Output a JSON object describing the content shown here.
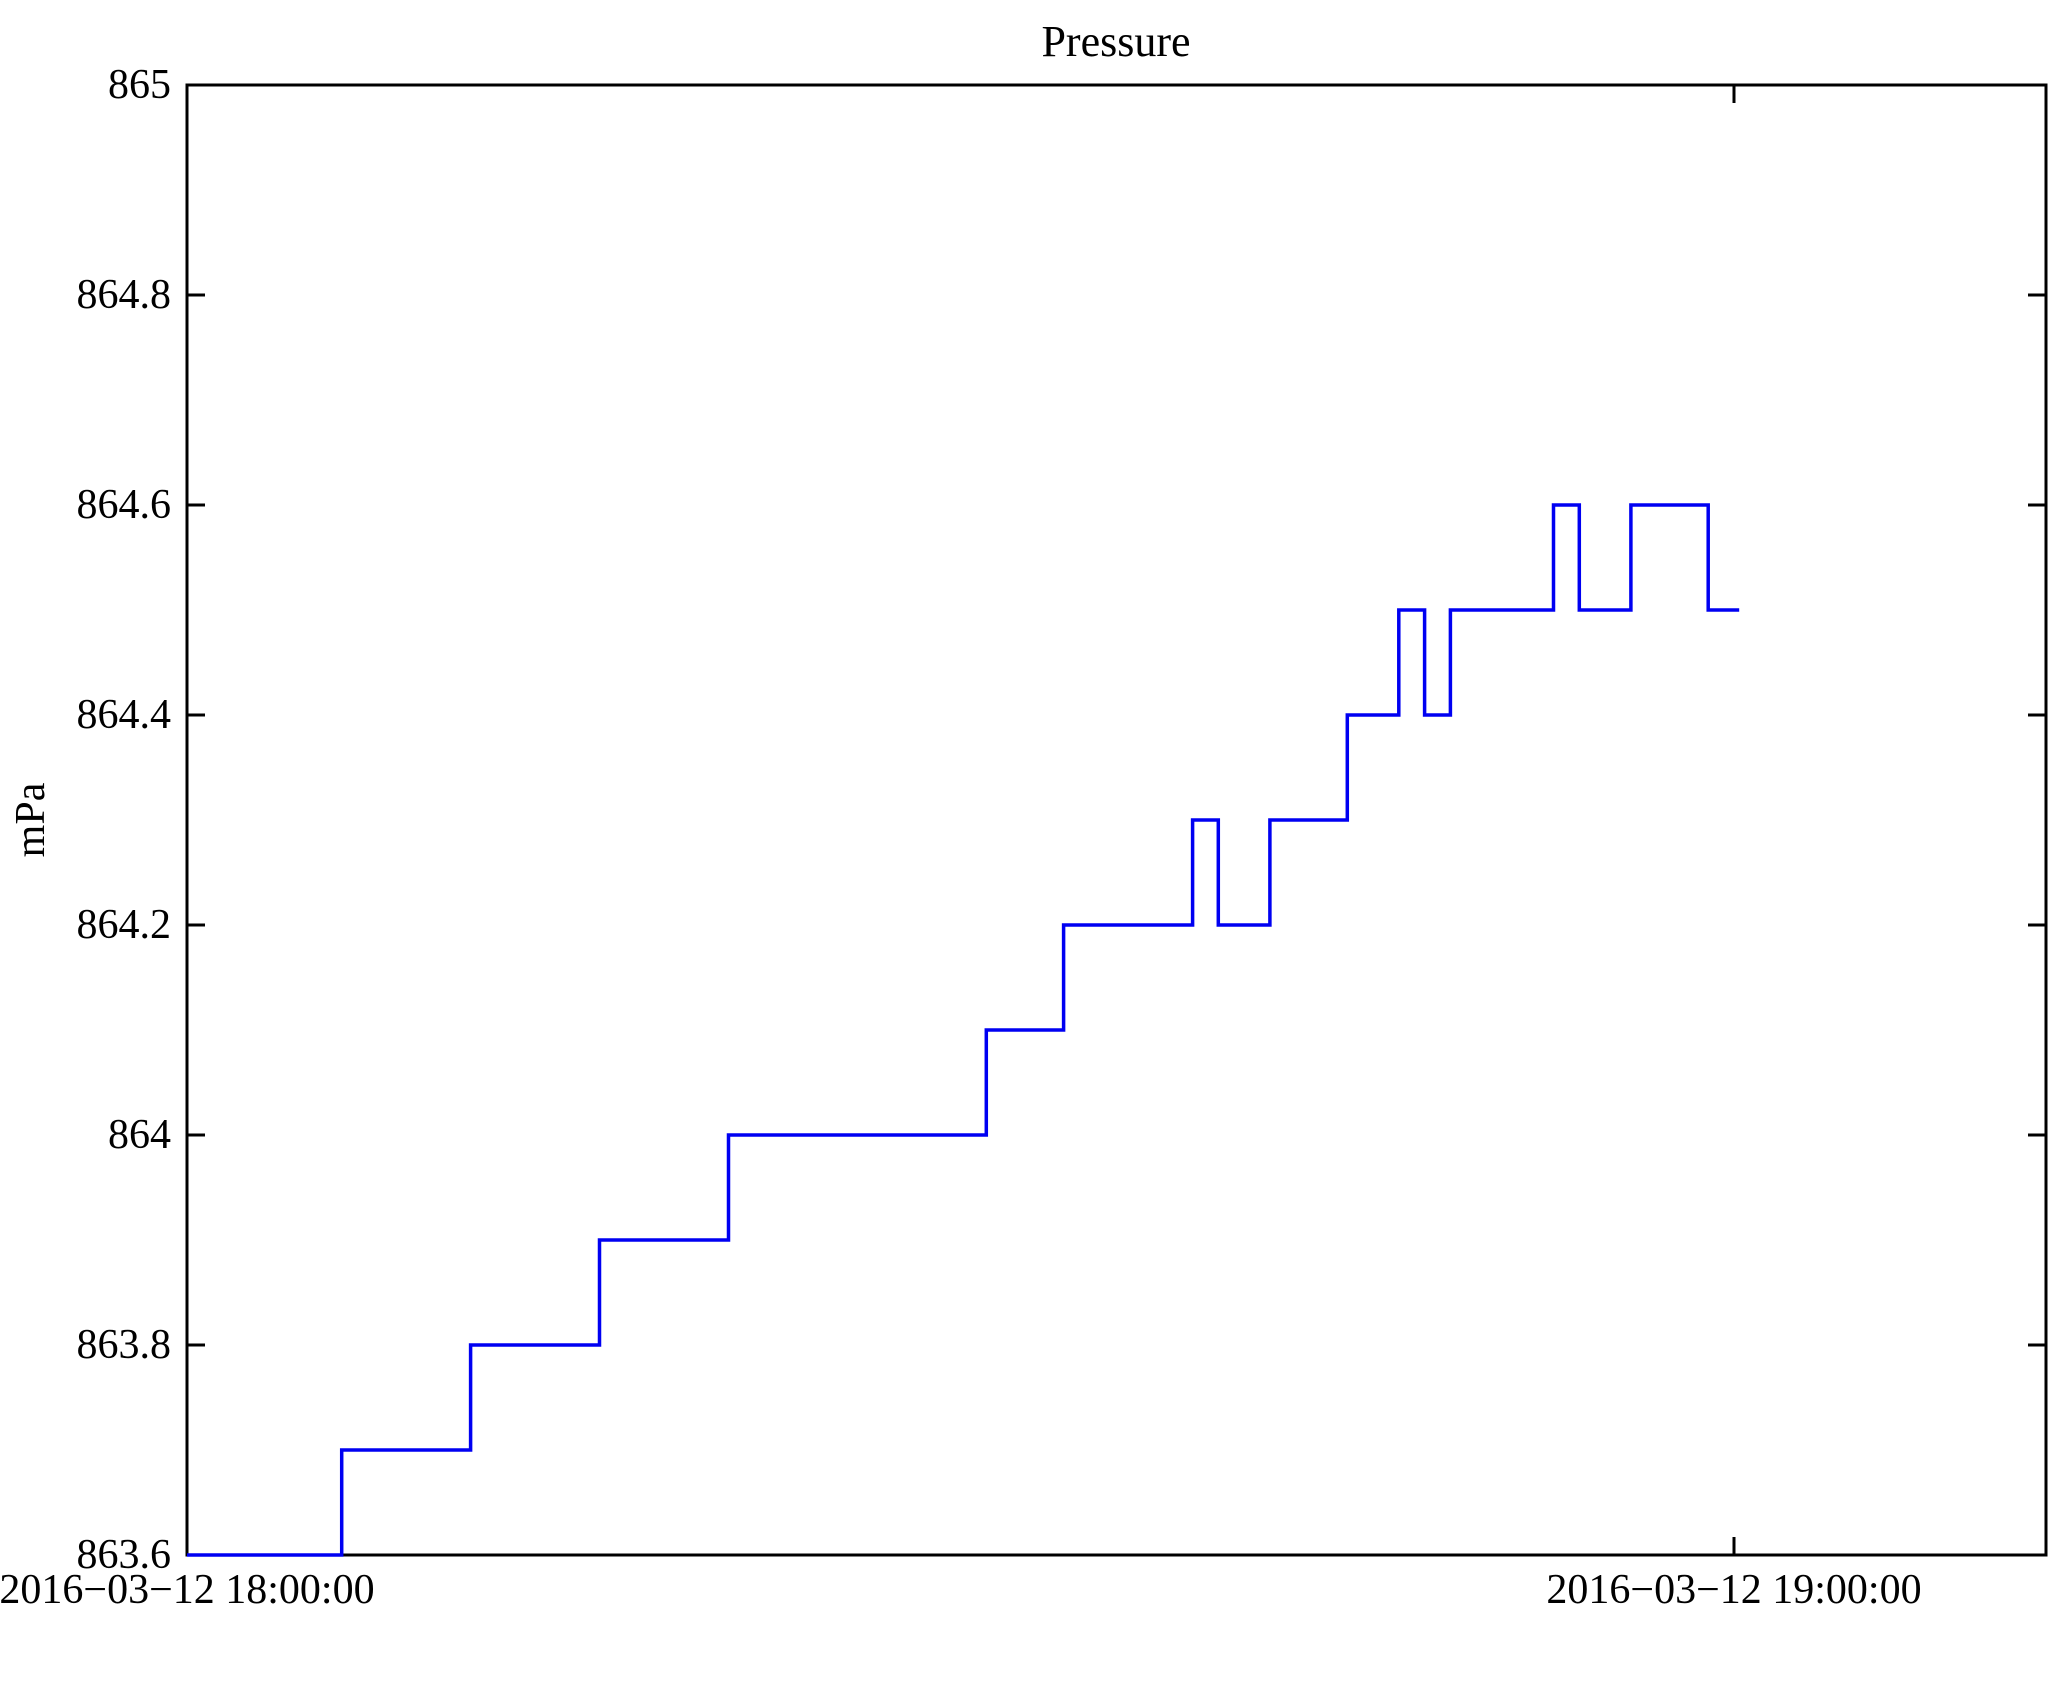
{
  "chart_data": {
    "type": "line",
    "subtype": "step-post",
    "title": "Pressure",
    "xlabel": "",
    "ylabel": "mPa",
    "grid": false,
    "legend": false,
    "line_color": "#0000f2",
    "axis_color": "#000000",
    "background_color": "#ffffff",
    "ylim": [
      863.6,
      865
    ],
    "y_ticks": [
      863.6,
      863.8,
      864,
      864.2,
      864.4,
      864.6,
      864.8,
      865
    ],
    "y_tick_labels": [
      "863.6",
      "863.8",
      "864",
      "864.2",
      "864.4",
      "864.6",
      "864.8",
      "865"
    ],
    "x_tick_minutes": [
      0,
      60
    ],
    "x_tick_labels": [
      "2016−03−12 18:00:00",
      "2016−03−12 19:00:00"
    ],
    "x_range_minutes": [
      0,
      72.1
    ],
    "series": [
      {
        "name": "Pressure",
        "unit": "mPa",
        "end_minute": 60.2,
        "end_time": "2016-03-12 19:00:00",
        "steps": [
          {
            "minute": 0,
            "time": "2016-03-12 18:00:00",
            "value": 863.6
          },
          {
            "minute": 6,
            "time": "2016-03-12 18:06:00",
            "value": 863.7
          },
          {
            "minute": 11,
            "time": "2016-03-12 18:11:00",
            "value": 863.8
          },
          {
            "minute": 16,
            "time": "2016-03-12 18:16:00",
            "value": 863.9
          },
          {
            "minute": 21,
            "time": "2016-03-12 18:21:00",
            "value": 864.0
          },
          {
            "minute": 31,
            "time": "2016-03-12 18:31:00",
            "value": 864.1
          },
          {
            "minute": 34,
            "time": "2016-03-12 18:34:00",
            "value": 864.2
          },
          {
            "minute": 39,
            "time": "2016-03-12 18:39:00",
            "value": 864.3
          },
          {
            "minute": 40,
            "time": "2016-03-12 18:40:00",
            "value": 864.2
          },
          {
            "minute": 42,
            "time": "2016-03-12 18:42:00",
            "value": 864.3
          },
          {
            "minute": 45,
            "time": "2016-03-12 18:45:00",
            "value": 864.4
          },
          {
            "minute": 47,
            "time": "2016-03-12 18:47:00",
            "value": 864.5
          },
          {
            "minute": 48,
            "time": "2016-03-12 18:48:00",
            "value": 864.4
          },
          {
            "minute": 49,
            "time": "2016-03-12 18:49:00",
            "value": 864.5
          },
          {
            "minute": 53,
            "time": "2016-03-12 18:53:00",
            "value": 864.6
          },
          {
            "minute": 54,
            "time": "2016-03-12 18:54:00",
            "value": 864.5
          },
          {
            "minute": 56,
            "time": "2016-03-12 18:56:00",
            "value": 864.6
          },
          {
            "minute": 59,
            "time": "2016-03-12 18:59:00",
            "value": 864.5
          }
        ]
      }
    ]
  }
}
